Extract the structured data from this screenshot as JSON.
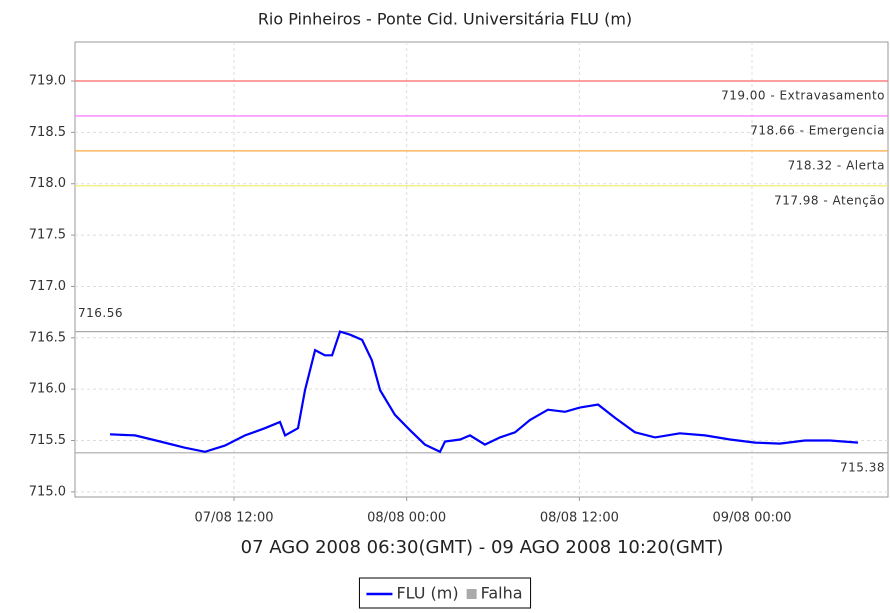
{
  "chart_data": {
    "type": "line",
    "title": "Rio Pinheiros - Ponte Cid. Universitária FLU (m)",
    "subtitle": "07 AGO 2008 06:30(GMT) - 09 AGO 2008 10:20(GMT)",
    "x": [
      "2008-08-07T03:23",
      "2008-08-07T05:07",
      "2008-08-07T06:52",
      "2008-08-07T08:35",
      "2008-08-07T09:59",
      "2008-08-07T11:22",
      "2008-08-07T12:46",
      "2008-08-07T14:09",
      "2008-08-07T15:12",
      "2008-08-07T15:33",
      "2008-08-07T16:27",
      "2008-08-07T16:56",
      "2008-08-07T17:38",
      "2008-08-07T18:19",
      "2008-08-07T18:49",
      "2008-08-07T19:22",
      "2008-08-07T20:04",
      "2008-08-07T20:54",
      "2008-08-07T21:35",
      "2008-08-07T22:09",
      "2008-08-07T23:11",
      "2008-08-08T00:14",
      "2008-08-08T01:16",
      "2008-08-08T02:19",
      "2008-08-08T02:40",
      "2008-08-08T03:43",
      "2008-08-08T04:24",
      "2008-08-08T05:26",
      "2008-08-08T06:29",
      "2008-08-08T07:32",
      "2008-08-08T08:34",
      "2008-08-08T09:49",
      "2008-08-08T11:00",
      "2008-08-08T12:02",
      "2008-08-08T13:18",
      "2008-08-08T14:29",
      "2008-08-08T15:52",
      "2008-08-08T17:16",
      "2008-08-08T18:59",
      "2008-08-08T20:44",
      "2008-08-08T22:28",
      "2008-08-09T00:13",
      "2008-08-09T01:56",
      "2008-08-09T03:41",
      "2008-08-09T05:25",
      "2008-08-09T07:22"
    ],
    "series": [
      {
        "name": "FLU (m)",
        "color": "#0000ff",
        "values": [
          715.56,
          715.55,
          715.49,
          715.43,
          715.39,
          715.45,
          715.55,
          715.62,
          715.68,
          715.55,
          715.62,
          715.99,
          716.38,
          716.33,
          716.33,
          716.56,
          716.53,
          716.48,
          716.28,
          715.99,
          715.75,
          715.6,
          715.46,
          715.39,
          715.49,
          715.51,
          715.55,
          715.46,
          715.53,
          715.58,
          715.7,
          715.8,
          715.78,
          715.82,
          715.85,
          715.72,
          715.58,
          715.53,
          715.57,
          715.55,
          715.51,
          715.48,
          715.47,
          715.5,
          715.5,
          715.48
        ]
      }
    ],
    "extra_legend_items": [
      {
        "name": "Falha",
        "color": "#aaaaaa"
      }
    ],
    "reference_lines": [
      {
        "value": 719.0,
        "label": "719.00 - Extravasamento",
        "color": "#ff6666",
        "label_position": "below-right"
      },
      {
        "value": 718.66,
        "label": "718.66 - Emergencia",
        "color": "#ff66ff",
        "label_position": "below-right"
      },
      {
        "value": 718.32,
        "label": "718.32 - Alerta",
        "color": "#ffaa44",
        "label_position": "below-right"
      },
      {
        "value": 717.98,
        "label": "717.98 - Atenção",
        "color": "#eeee66",
        "label_position": "below-right"
      },
      {
        "value": 716.56,
        "label": "716.56",
        "color": "#aaaaaa",
        "label_position": "above-left"
      },
      {
        "value": 715.38,
        "label": "715.38",
        "color": "#aaaaaa",
        "label_position": "below-right"
      }
    ],
    "xlim": [
      "2008-08-07T00:57",
      "2008-08-09T09:27"
    ],
    "xticks": [
      {
        "value": "2008-08-07T12:00",
        "label": "07/08 12:00"
      },
      {
        "value": "2008-08-08T00:00",
        "label": "08/08 00:00"
      },
      {
        "value": "2008-08-08T12:00",
        "label": "08/08 12:00"
      },
      {
        "value": "2008-08-09T00:00",
        "label": "09/08 00:00"
      }
    ],
    "ylim": [
      714.95,
      719.38
    ],
    "yticks": [
      {
        "value": 715.0,
        "label": "715.0"
      },
      {
        "value": 715.5,
        "label": "715.5"
      },
      {
        "value": 716.0,
        "label": "716.0"
      },
      {
        "value": 716.5,
        "label": "716.5"
      },
      {
        "value": 717.0,
        "label": "717.0"
      },
      {
        "value": 717.5,
        "label": "717.5"
      },
      {
        "value": 718.0,
        "label": "718.0"
      },
      {
        "value": 718.5,
        "label": "718.5"
      },
      {
        "value": 719.0,
        "label": "719.0"
      }
    ],
    "grid": true,
    "legend": "bottom"
  }
}
